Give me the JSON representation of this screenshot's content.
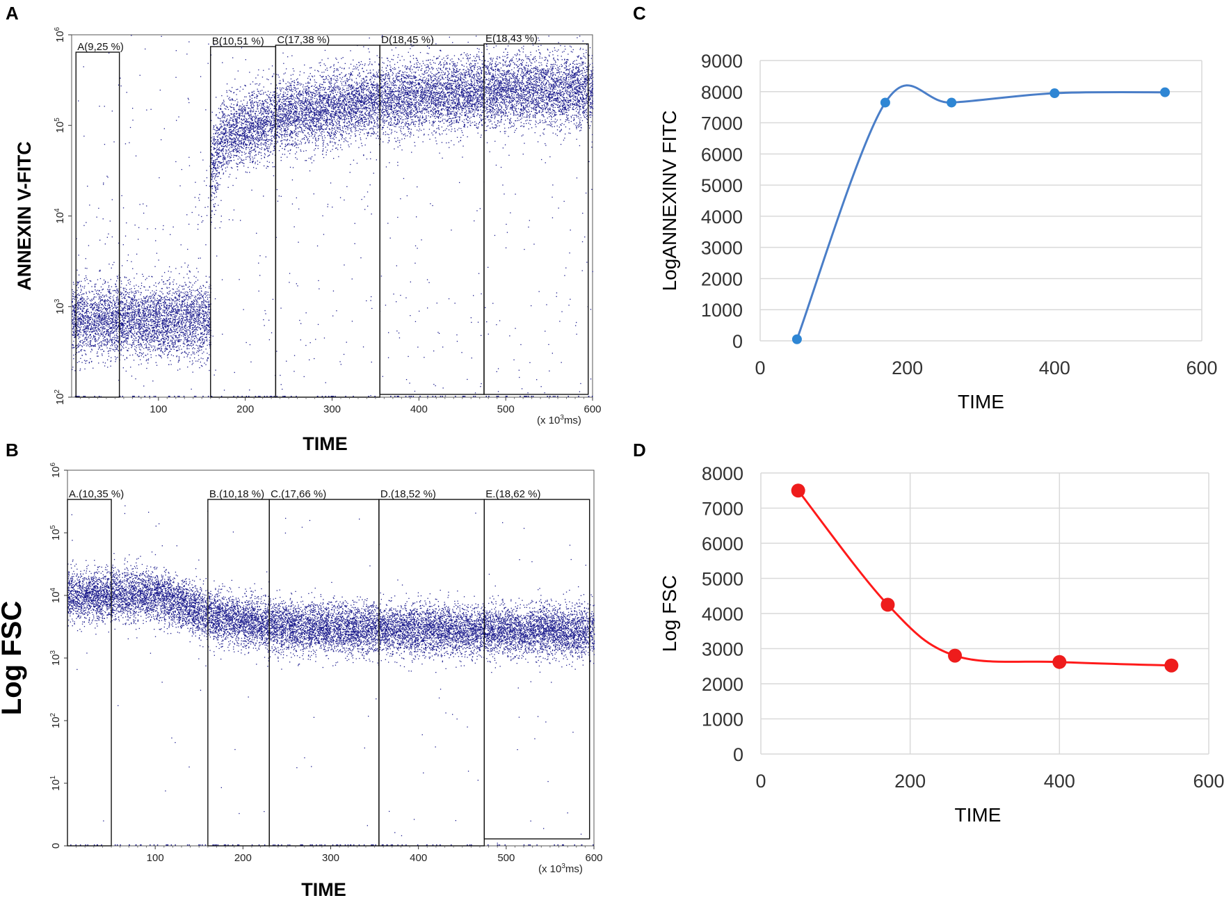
{
  "panels": {
    "A": "A",
    "B": "B",
    "C": "C",
    "D": "D"
  },
  "colors": {
    "scatter": "#1a1a8c",
    "lineC": "#4a7ec8",
    "pointC": "#2e86d4",
    "lineD": "#ff1a1a",
    "pointD": "#ee1c1c",
    "grid": "#d9d9d9"
  },
  "chart_data": [
    {
      "id": "A",
      "type": "scatter",
      "title": "",
      "xlabel": "TIME",
      "ylabel": "ANNEXIN V-FITC",
      "x_unit": "(x 10³ms)",
      "x_unit_parts": [
        "(x 10",
        "3",
        "ms)"
      ],
      "xlim": [
        0,
        600
      ],
      "y_scale": "log",
      "ylim_log10": [
        2,
        6
      ],
      "x_ticks": [
        100,
        200,
        300,
        400,
        500,
        600
      ],
      "y_ticks": [
        {
          "base": "10",
          "exp": "2"
        },
        {
          "base": "10",
          "exp": "3"
        },
        {
          "base": "10",
          "exp": "4"
        },
        {
          "base": "10",
          "exp": "5"
        },
        {
          "base": "10",
          "exp": "6"
        }
      ],
      "gates": [
        {
          "name": "A",
          "label": "A(9,25 %)",
          "x_start": 5,
          "x_end": 55,
          "percent": 9.25
        },
        {
          "name": "B",
          "label": "B(10,51 %)",
          "x_start": 160,
          "x_end": 235,
          "percent": 10.51
        },
        {
          "name": "C",
          "label": "C(17,38 %)",
          "x_start": 235,
          "x_end": 355,
          "percent": 17.38
        },
        {
          "name": "D",
          "label": "D(18,45 %)",
          "x_start": 355,
          "x_end": 475,
          "percent": 18.45
        },
        {
          "name": "E",
          "label": "E(18,43 %)",
          "x_start": 475,
          "x_end": 595,
          "percent": 18.43
        }
      ],
      "population_trend": [
        {
          "time": 0,
          "log10_value": 2.85
        },
        {
          "time": 120,
          "log10_value": 2.88
        },
        {
          "time": 170,
          "log10_value": 4.85
        },
        {
          "time": 240,
          "log10_value": 5.1
        },
        {
          "time": 360,
          "log10_value": 5.28
        },
        {
          "time": 480,
          "log10_value": 5.38
        },
        {
          "time": 600,
          "log10_value": 5.4
        }
      ]
    },
    {
      "id": "B",
      "type": "scatter",
      "title": "",
      "xlabel": "TIME",
      "ylabel": "Log FSC",
      "x_unit": "(x 10³ms)",
      "x_unit_parts": [
        "(x 10",
        "3",
        "ms)"
      ],
      "xlim": [
        0,
        600
      ],
      "y_scale": "log",
      "ylim_log10": [
        0,
        6
      ],
      "x_ticks": [
        100,
        200,
        300,
        400,
        500,
        600
      ],
      "y_ticks": [
        {
          "base": "0",
          "exp": ""
        },
        {
          "base": "10",
          "exp": "1"
        },
        {
          "base": "10",
          "exp": "2"
        },
        {
          "base": "10",
          "exp": "3"
        },
        {
          "base": "10",
          "exp": "4"
        },
        {
          "base": "10",
          "exp": "5"
        },
        {
          "base": "10",
          "exp": "6"
        }
      ],
      "gates": [
        {
          "name": "A",
          "label": "A.(10,35 %)",
          "x_start": 0,
          "x_end": 50,
          "percent": 10.35
        },
        {
          "name": "B",
          "label": "B.(10,18 %)",
          "x_start": 160,
          "x_end": 230,
          "percent": 10.18
        },
        {
          "name": "C",
          "label": "C.(17,66 %)",
          "x_start": 230,
          "x_end": 355,
          "percent": 17.66
        },
        {
          "name": "D",
          "label": "D.(18,52 %)",
          "x_start": 355,
          "x_end": 475,
          "percent": 18.52
        },
        {
          "name": "E",
          "label": "E.(18,62 %)",
          "x_start": 475,
          "x_end": 595,
          "percent": 18.62
        }
      ],
      "population_trend": [
        {
          "time": 0,
          "log10_value": 4.0
        },
        {
          "time": 100,
          "log10_value": 4.02
        },
        {
          "time": 170,
          "log10_value": 3.65
        },
        {
          "time": 250,
          "log10_value": 3.5
        },
        {
          "time": 400,
          "log10_value": 3.45
        },
        {
          "time": 600,
          "log10_value": 3.42
        }
      ]
    },
    {
      "id": "C",
      "type": "line",
      "title": "",
      "xlabel": "TIME",
      "ylabel": "LogANNEXINV FITC",
      "xlim": [
        0,
        600
      ],
      "ylim": [
        0,
        9000
      ],
      "x_ticks": [
        0,
        200,
        400,
        600
      ],
      "y_ticks": [
        0,
        1000,
        2000,
        3000,
        4000,
        5000,
        6000,
        7000,
        8000,
        9000
      ],
      "grid": "horizontal",
      "smooth": true,
      "series": [
        {
          "name": "AnnexinV",
          "x": [
            50,
            170,
            260,
            400,
            550
          ],
          "y": [
            50,
            7650,
            7650,
            7950,
            7980
          ]
        }
      ]
    },
    {
      "id": "D",
      "type": "line",
      "title": "",
      "xlabel": "TIME",
      "ylabel": "Log FSC",
      "xlim": [
        0,
        600
      ],
      "ylim": [
        0,
        8000
      ],
      "x_ticks": [
        0,
        200,
        400,
        600
      ],
      "y_ticks": [
        0,
        1000,
        2000,
        3000,
        4000,
        5000,
        6000,
        7000,
        8000
      ],
      "grid": "both",
      "smooth": true,
      "series": [
        {
          "name": "FSC",
          "x": [
            50,
            170,
            260,
            400,
            550
          ],
          "y": [
            7500,
            4250,
            2800,
            2620,
            2520
          ]
        }
      ]
    }
  ]
}
